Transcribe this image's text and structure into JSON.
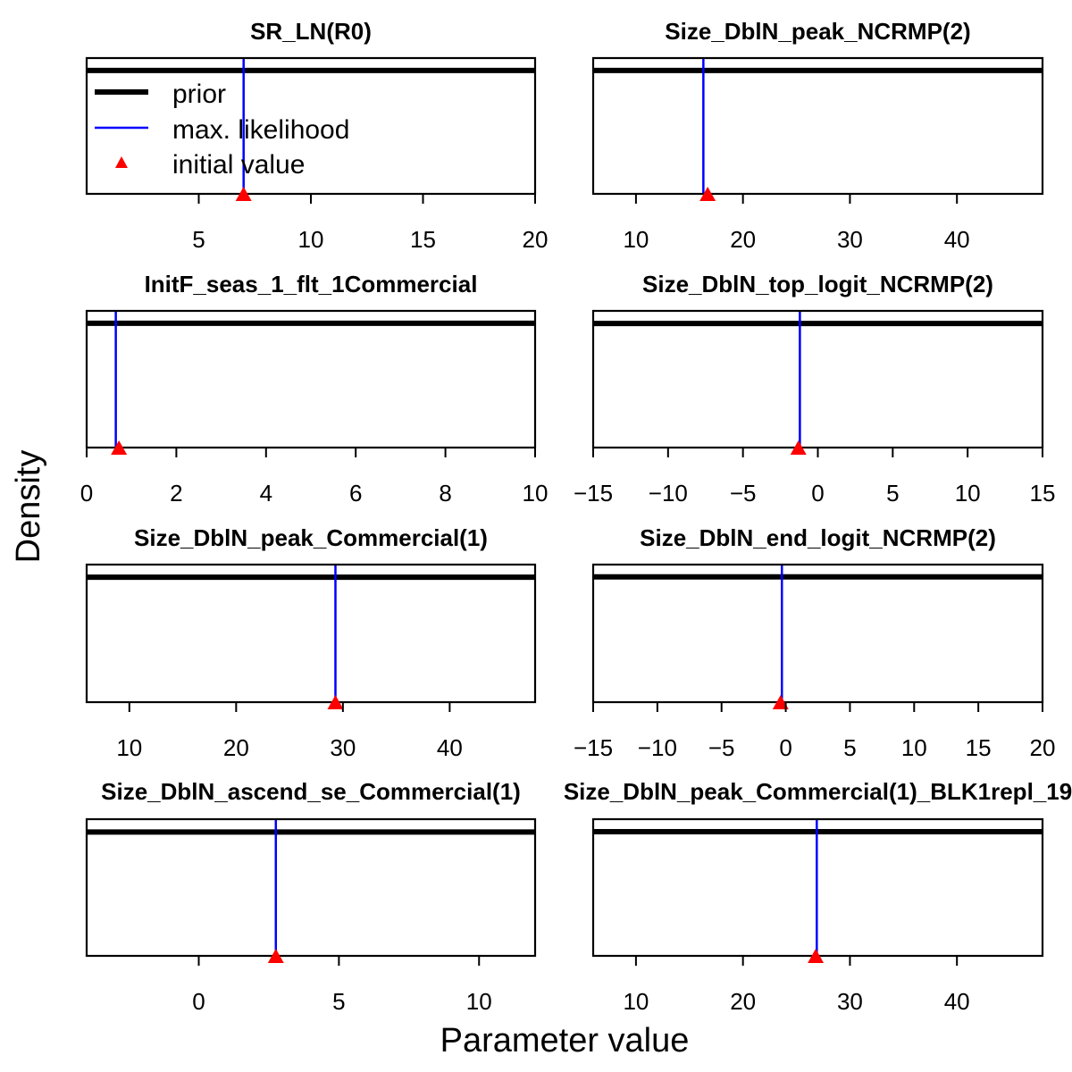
{
  "figure": {
    "xlabel": "Parameter value",
    "ylabel": "Density"
  },
  "legend": {
    "items": [
      {
        "label": "prior",
        "kind": "thick-line",
        "color": "#000000"
      },
      {
        "label": "max. likelihood",
        "kind": "line",
        "color": "#0000ff"
      },
      {
        "label": "initial value",
        "kind": "triangle",
        "color": "#ff0000"
      }
    ]
  },
  "colors": {
    "prior": "#000000",
    "mle": "#0000ff",
    "initial": "#ff0000"
  },
  "chart_data": [
    {
      "type": "line",
      "title": "SR_LN(R0)",
      "xlim": [
        0,
        20
      ],
      "ticks": [
        5,
        10,
        15,
        20
      ],
      "prior_density": 0.05,
      "ylim": [
        0,
        0.055
      ],
      "mle": 7.0,
      "initial": 7.0,
      "legend": true
    },
    {
      "type": "line",
      "title": "Size_DblN_peak_NCRMP(2)",
      "xlim": [
        6,
        48
      ],
      "ticks": [
        10,
        20,
        30,
        40
      ],
      "prior_density": 0.0238,
      "ylim": [
        0,
        0.0262
      ],
      "mle": 16.3,
      "initial": 16.7
    },
    {
      "type": "line",
      "title": "InitF_seas_1_flt_1Commercial",
      "xlim": [
        0,
        10
      ],
      "ticks": [
        0,
        2,
        4,
        6,
        8,
        10
      ],
      "prior_density": 0.1,
      "ylim": [
        0,
        0.11
      ],
      "mle": 0.65,
      "initial": 0.72
    },
    {
      "type": "line",
      "title": "Size_DblN_top_logit_NCRMP(2)",
      "xlim": [
        -15,
        15
      ],
      "ticks": [
        -15,
        -10,
        -5,
        0,
        5,
        10,
        15
      ],
      "prior_density": 0.0333,
      "ylim": [
        0,
        0.0367
      ],
      "mle": -1.2,
      "initial": -1.3
    },
    {
      "type": "line",
      "title": "Size_DblN_peak_Commercial(1)",
      "xlim": [
        6,
        48
      ],
      "ticks": [
        10,
        20,
        30,
        40
      ],
      "prior_density": 0.0238,
      "ylim": [
        0,
        0.0262
      ],
      "mle": 29.3,
      "initial": 29.3
    },
    {
      "type": "line",
      "title": "Size_DblN_end_logit_NCRMP(2)",
      "xlim": [
        -15,
        20
      ],
      "ticks": [
        -15,
        -10,
        -5,
        0,
        5,
        10,
        15,
        20
      ],
      "prior_density": 0.0286,
      "ylim": [
        0,
        0.0314
      ],
      "mle": -0.3,
      "initial": -0.4
    },
    {
      "type": "line",
      "title": "Size_DblN_ascend_se_Commercial(1)",
      "xlim": [
        -4,
        12
      ],
      "ticks": [
        0,
        5,
        10
      ],
      "prior_density": 0.0625,
      "ylim": [
        0,
        0.069
      ],
      "mle": 2.75,
      "initial": 2.75
    },
    {
      "type": "line",
      "title": "Size_DblN_peak_Commercial(1)_BLK1repl_19",
      "xlim": [
        6,
        48
      ],
      "ticks": [
        10,
        20,
        30,
        40
      ],
      "prior_density": 0.0238,
      "ylim": [
        0,
        0.0262
      ],
      "mle": 26.9,
      "initial": 26.8
    }
  ]
}
